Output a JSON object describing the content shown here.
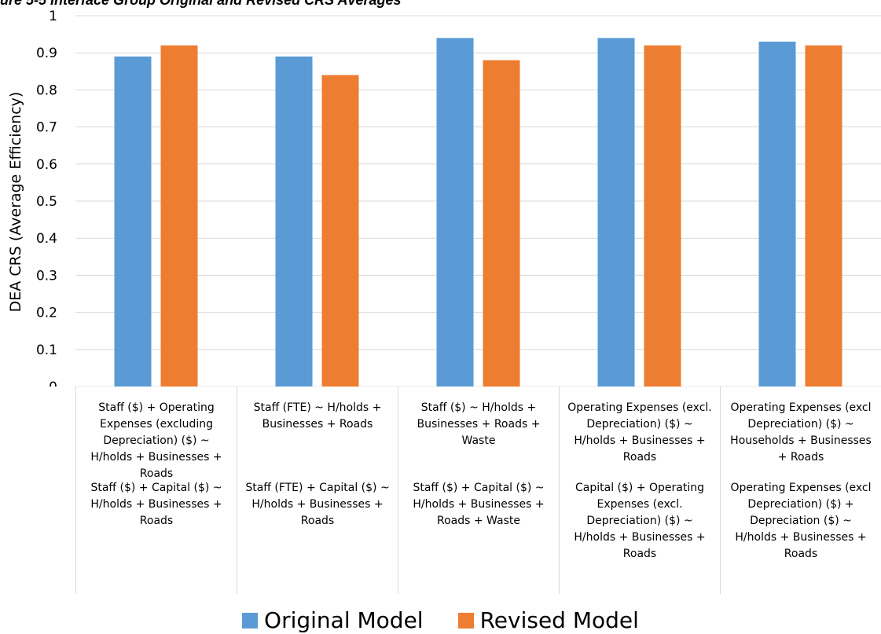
{
  "figure_title": "ure 5-5  Interface Group Original and Revised CRS Averages",
  "colors": {
    "original": "#5B9BD5",
    "revised": "#ED7D31",
    "grid": "#d9d9d9"
  },
  "chart_data": {
    "type": "bar",
    "title": "",
    "ylabel": "DEA CRS (Average Efficiency)",
    "xlabel": "",
    "ylim": [
      0,
      1
    ],
    "yticks": [
      0,
      0.1,
      0.2,
      0.3,
      0.4,
      0.5,
      0.6,
      0.7,
      0.8,
      0.9,
      1
    ],
    "ytick_labels": [
      "0",
      "0.1",
      "0.2",
      "0.3",
      "0.4",
      "0.5",
      "0.6",
      "0.7",
      "0.8",
      "0.9",
      "1"
    ],
    "grid": true,
    "legend_position": "bottom",
    "categories": [
      {
        "first": [
          "Staff ($) + Operating",
          "Expenses (excluding",
          "Depreciation) ($) ~",
          "H/holds + Businesses +",
          "Roads"
        ],
        "second": [
          "Staff ($) + Capital ($) ~",
          "H/holds + Businesses +",
          "Roads"
        ]
      },
      {
        "first": [
          "Staff (FTE) ~ H/holds +",
          "Businesses + Roads"
        ],
        "second": [
          "Staff (FTE) + Capital ($) ~",
          "H/holds + Businesses +",
          "Roads"
        ]
      },
      {
        "first": [
          "Staff ($) ~ H/holds +",
          "Businesses + Roads +",
          "Waste"
        ],
        "second": [
          "Staff ($) + Capital ($) ~",
          "H/holds + Businesses +",
          "Roads + Waste"
        ]
      },
      {
        "first": [
          "Operating Expenses (excl.",
          "Depreciation) ($) ~",
          "H/holds + Businesses +",
          "Roads"
        ],
        "second": [
          "Capital ($) + Operating",
          "Expenses (excl.",
          "Depreciation) ($) ~",
          "H/holds + Businesses +",
          "Roads"
        ]
      },
      {
        "first": [
          "Operating Expenses (excl",
          "Depreciation) ($) ~",
          "Households + Businesses",
          "+ Roads"
        ],
        "second": [
          "Operating Expenses (excl",
          "Depreciation) ($) +",
          "Depreciation ($) ~",
          "H/holds + Businesses +",
          "Roads"
        ]
      }
    ],
    "series": [
      {
        "name": "Original Model",
        "values": [
          0.89,
          0.89,
          0.94,
          0.94,
          0.93
        ]
      },
      {
        "name": "Revised Model",
        "values": [
          0.92,
          0.84,
          0.88,
          0.92,
          0.92
        ]
      }
    ]
  }
}
